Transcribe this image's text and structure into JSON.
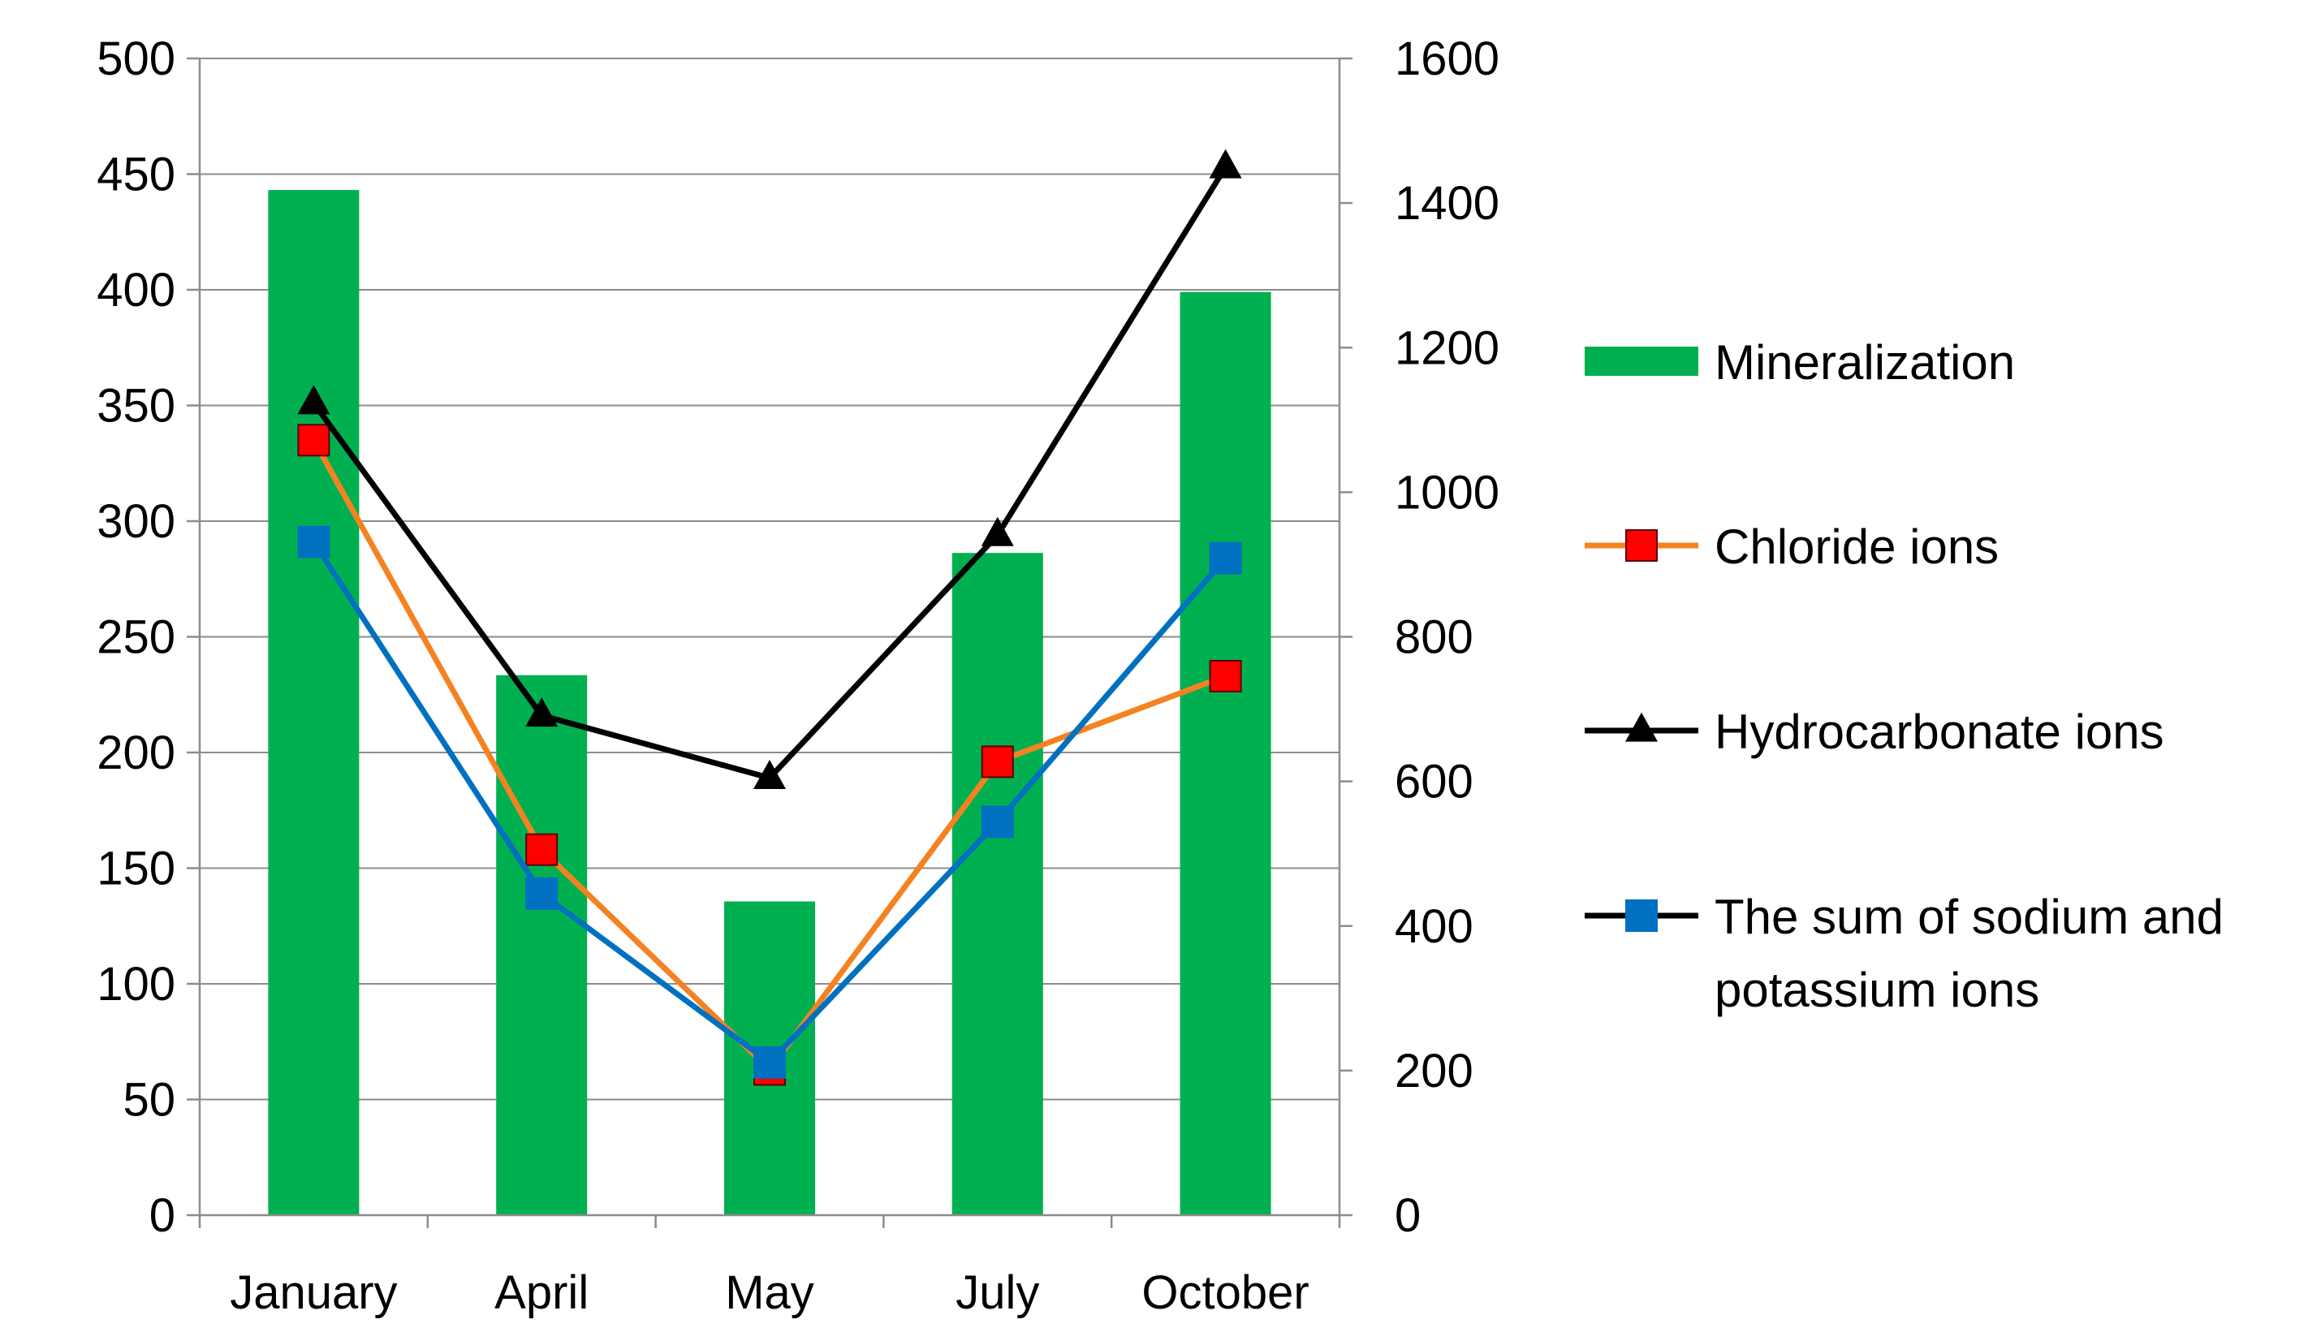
{
  "chart_data": {
    "type": "bar",
    "categories": [
      "January",
      "April",
      "May",
      "July",
      "October"
    ],
    "y_left": {
      "lim": [
        0,
        500
      ],
      "ticks": [
        "0",
        "50",
        "100",
        "150",
        "200",
        "250",
        "300",
        "350",
        "400",
        "450",
        "500"
      ]
    },
    "y_right": {
      "lim": [
        0,
        1600
      ],
      "ticks": [
        "0",
        "200",
        "400",
        "600",
        "800",
        "1000",
        "1200",
        "1400",
        "1600"
      ]
    },
    "grid": true,
    "legend_position": "right",
    "series": [
      {
        "name": "Mineralization",
        "type": "bar",
        "axis": "right",
        "color": "#00B050",
        "values": [
          1418,
          747,
          434,
          916,
          1277
        ]
      },
      {
        "name": "Chloride ions",
        "type": "line",
        "axis": "left",
        "color": "#F58220",
        "marker": "square",
        "marker_color": "#FF0000",
        "values": [
          335,
          158,
          63,
          196,
          233
        ]
      },
      {
        "name": "Hydrocarbonate ions",
        "type": "line",
        "axis": "left",
        "color": "#000000",
        "marker": "triangle",
        "marker_color": "#000000",
        "values": [
          351,
          216,
          189,
          294,
          453
        ]
      },
      {
        "name": "The sum of sodium and potassium ions",
        "legend_lines": [
          "The sum of sodium and",
          "potassium ions"
        ],
        "type": "line",
        "axis": "left",
        "color": "#0070C0",
        "marker": "square",
        "marker_color": "#0070C0",
        "values": [
          291,
          139,
          66,
          170,
          284
        ]
      }
    ]
  }
}
